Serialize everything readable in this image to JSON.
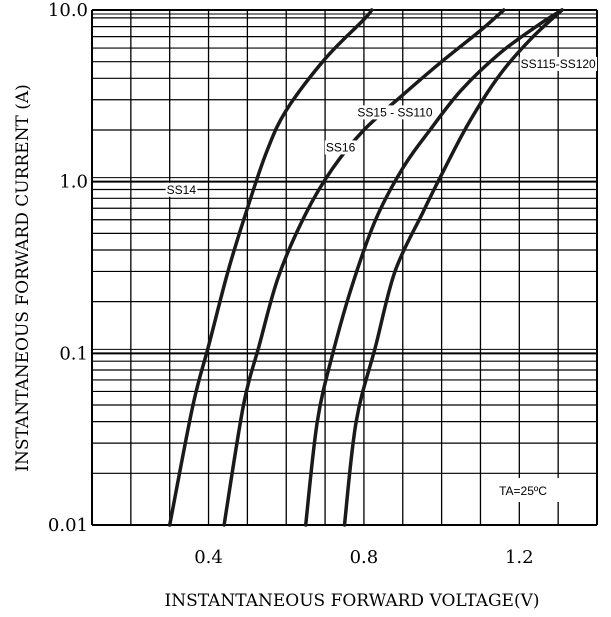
{
  "chart_data": {
    "type": "line",
    "title": "",
    "xlabel": "INSTANTANEOUS FORWARD VOLTAGE(V)",
    "ylabel": "INSTANTANEOUS FORWARD CURRENT (A)",
    "x_scale": "linear",
    "y_scale": "log",
    "xlim": [
      0.1,
      1.4
    ],
    "ylim": [
      0.01,
      10.0
    ],
    "x_ticks": [
      {
        "value": 0.4,
        "label": "0.4"
      },
      {
        "value": 0.8,
        "label": "0.8"
      },
      {
        "value": 1.2,
        "label": "1.2"
      }
    ],
    "y_ticks": [
      {
        "value": 0.01,
        "label": "0.01"
      },
      {
        "value": 0.1,
        "label": "0.1"
      },
      {
        "value": 1.0,
        "label": "1.0"
      },
      {
        "value": 10.0,
        "label": "10.0"
      }
    ],
    "grid": true,
    "annotation": "TA=25ºC",
    "series": [
      {
        "name": "SS14",
        "points": [
          [
            0.3,
            0.01
          ],
          [
            0.36,
            0.05
          ],
          [
            0.4,
            0.11
          ],
          [
            0.45,
            0.3
          ],
          [
            0.5,
            0.7
          ],
          [
            0.55,
            1.5
          ],
          [
            0.6,
            2.6
          ],
          [
            0.7,
            5.2
          ],
          [
            0.8,
            8.8
          ],
          [
            0.82,
            10.0
          ]
        ]
      },
      {
        "name": "SS16",
        "points": [
          [
            0.44,
            0.01
          ],
          [
            0.49,
            0.05
          ],
          [
            0.53,
            0.11
          ],
          [
            0.58,
            0.28
          ],
          [
            0.65,
            0.65
          ],
          [
            0.72,
            1.2
          ],
          [
            0.8,
            2.0
          ],
          [
            0.9,
            3.2
          ],
          [
            1.0,
            5.0
          ],
          [
            1.1,
            7.6
          ],
          [
            1.16,
            10.0
          ]
        ]
      },
      {
        "name": "SS15 - SS110",
        "points": [
          [
            0.65,
            0.01
          ],
          [
            0.68,
            0.04
          ],
          [
            0.72,
            0.1
          ],
          [
            0.77,
            0.25
          ],
          [
            0.83,
            0.6
          ],
          [
            0.9,
            1.2
          ],
          [
            0.97,
            2.0
          ],
          [
            1.05,
            3.4
          ],
          [
            1.15,
            5.6
          ],
          [
            1.25,
            8.2
          ],
          [
            1.31,
            10.0
          ]
        ]
      },
      {
        "name": "SS115-SS120",
        "points": [
          [
            0.75,
            0.01
          ],
          [
            0.78,
            0.04
          ],
          [
            0.83,
            0.11
          ],
          [
            0.88,
            0.3
          ],
          [
            0.95,
            0.65
          ],
          [
            1.0,
            1.1
          ],
          [
            1.07,
            2.2
          ],
          [
            1.15,
            4.2
          ],
          [
            1.23,
            6.8
          ],
          [
            1.31,
            10.0
          ]
        ]
      }
    ],
    "series_labels": [
      {
        "text": "SS14",
        "x": 0.33,
        "y": 0.85
      },
      {
        "text": "SS16",
        "x": 0.74,
        "y": 1.5
      },
      {
        "text": "SS15 - SS110",
        "x": 0.88,
        "y": 2.4
      },
      {
        "text": "SS115-SS120",
        "x": 1.3,
        "y": 4.6
      }
    ]
  }
}
